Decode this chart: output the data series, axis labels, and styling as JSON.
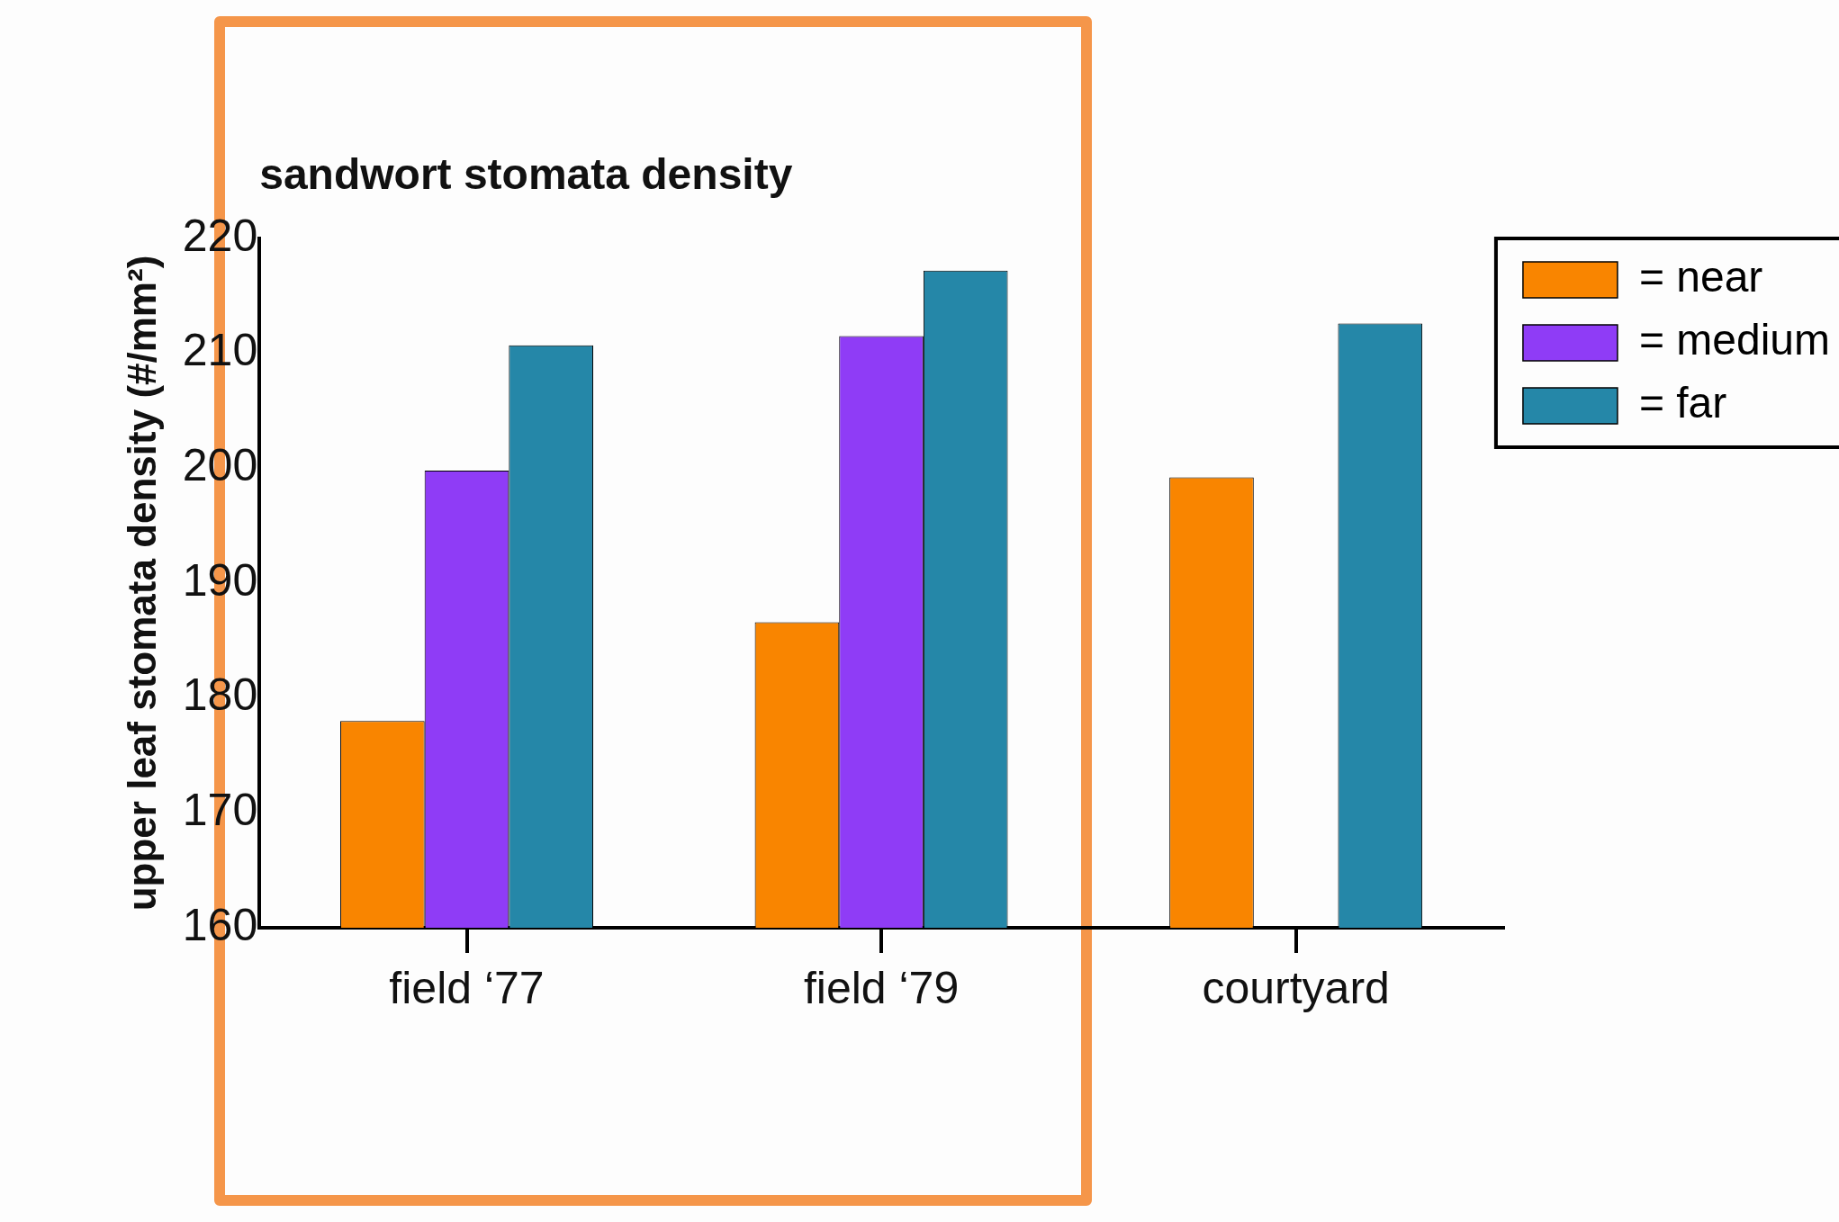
{
  "chart_data": {
    "type": "bar",
    "title": "sandwort stomata density",
    "ylabel": "upper leaf stomata density (#/mm²)",
    "categories": [
      "field ‘77",
      "field ‘79",
      "courtyard"
    ],
    "series": [
      {
        "name": "= near",
        "color": "#f98500",
        "values": [
          178,
          186.6,
          199.2
        ]
      },
      {
        "name": "= medium",
        "color": "#8f3cf6",
        "values": [
          199.8,
          211.5,
          null
        ]
      },
      {
        "name": "= far",
        "color": "#2587a8",
        "values": [
          210.7,
          217.2,
          212.6
        ]
      }
    ],
    "ylim": [
      160,
      220
    ],
    "yticks": [
      160,
      170,
      180,
      190,
      200,
      210,
      220
    ],
    "grid": false,
    "legend": "top right"
  }
}
